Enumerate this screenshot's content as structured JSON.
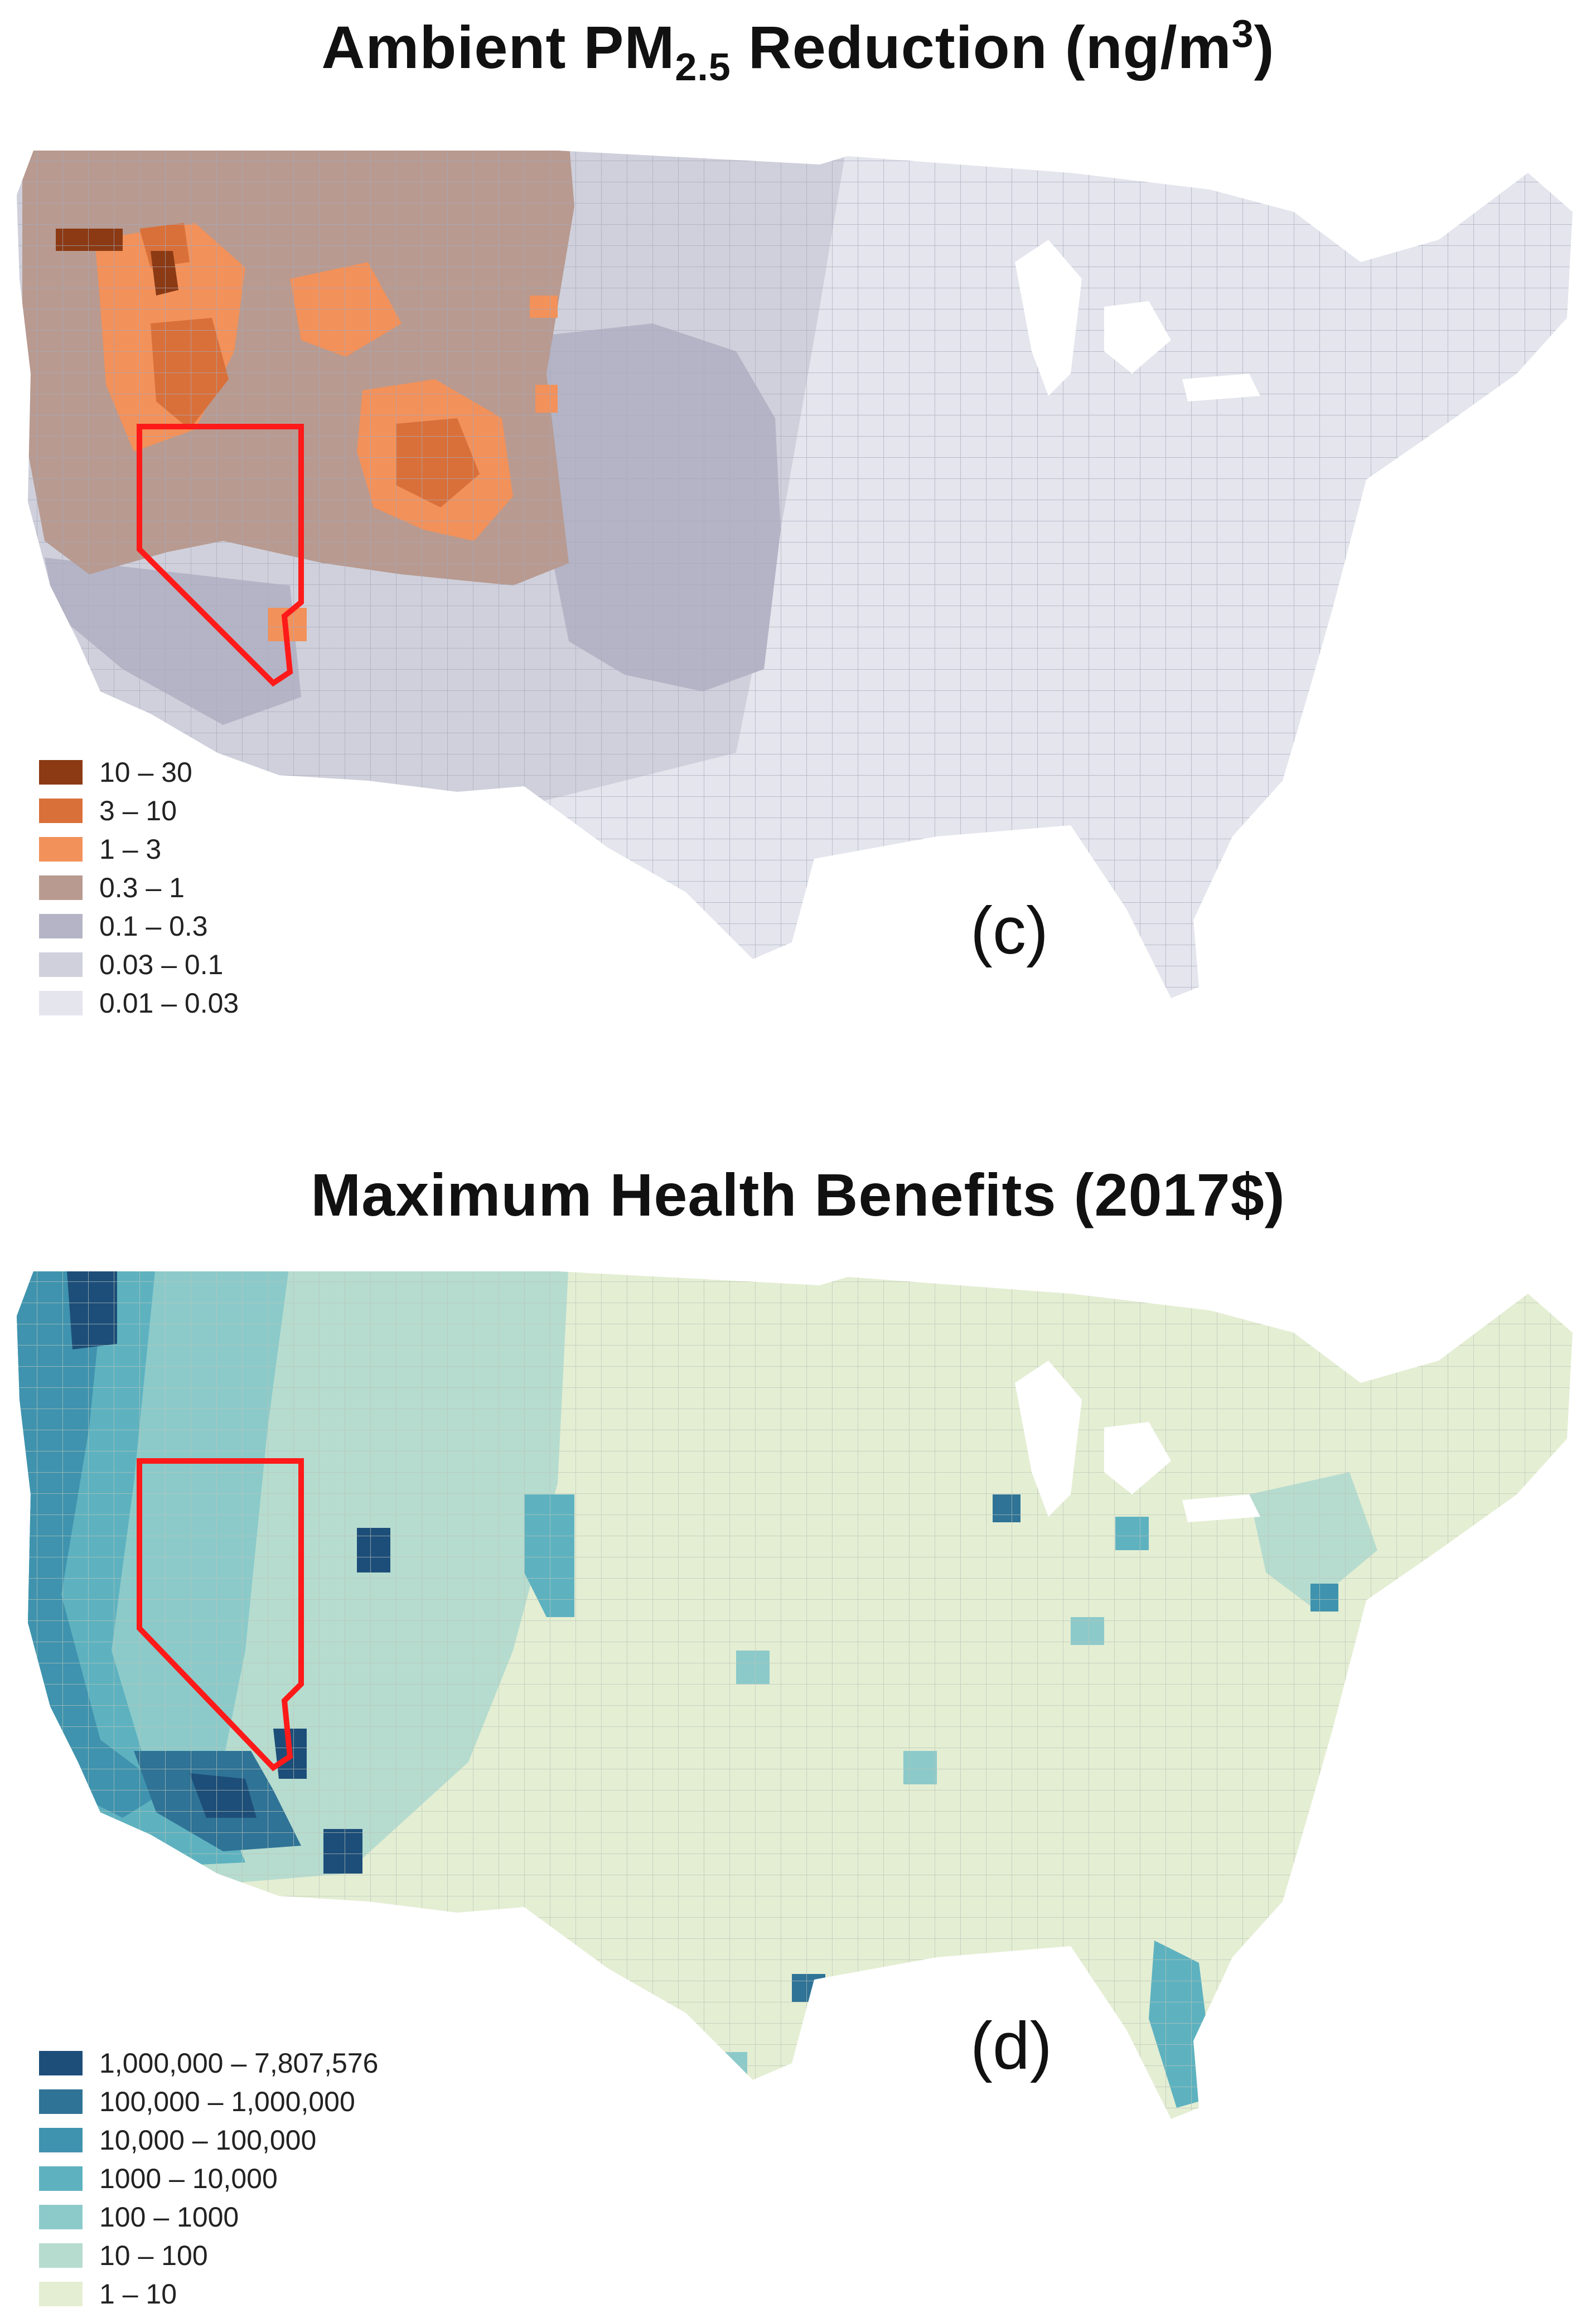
{
  "figure": {
    "panel_c": {
      "title_main": "Ambient PM",
      "title_sub": "2.5",
      "title_rest": " Reduction (ng/m",
      "title_sup": "3",
      "title_end": ")",
      "panel_label": "(c)",
      "legend": [
        {
          "label": "10 – 30",
          "color": "#8b3a14"
        },
        {
          "label": "3 – 10",
          "color": "#d9703a"
        },
        {
          "label": "1 – 3",
          "color": "#f2915a"
        },
        {
          "label": "0.3 – 1",
          "color": "#b89a90"
        },
        {
          "label": "0.1 – 0.3",
          "color": "#b4b4c6"
        },
        {
          "label": "0.03 – 0.1",
          "color": "#cfd0db"
        },
        {
          "label": "0.01 – 0.03",
          "color": "#e4e5ed"
        }
      ]
    },
    "panel_d": {
      "title": "Maximum Health Benefits (2017$)",
      "panel_label": "(d)",
      "legend": [
        {
          "label": "1,000,000 – 7,807,576",
          "color": "#1d4e79"
        },
        {
          "label": "100,000 – 1,000,000",
          "color": "#2f7396"
        },
        {
          "label": "10,000 – 100,000",
          "color": "#3f93ae"
        },
        {
          "label": "1000 – 10,000",
          "color": "#5eb2c0"
        },
        {
          "label": "100 – 1000",
          "color": "#8ccaca"
        },
        {
          "label": "10 – 100",
          "color": "#b6dccf"
        },
        {
          "label": "1 – 10",
          "color": "#e4eed3"
        }
      ]
    },
    "colors": {
      "highlight_outline": "#ff1a1a",
      "county_border": "#9aa0b0"
    }
  }
}
